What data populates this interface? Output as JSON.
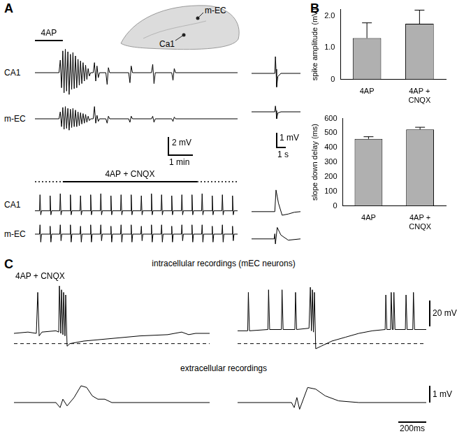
{
  "panel_labels": [
    "A",
    "B",
    "C"
  ],
  "slice_labels": [
    "m-EC",
    "Ca1"
  ],
  "panel_A_scale_bars": [
    {
      "y_label": "2 mV",
      "x_label": "1 min"
    },
    {
      "y_label": "1 mV",
      "x_label": "1 s"
    }
  ],
  "panel_C": {
    "intracellular_title": "intracellular recordings (mEC neurons)",
    "condition": "4AP + CNQX",
    "extracellular_title": "extracellular recordings",
    "scale_bars": {
      "intracellular_y": "20 mV",
      "extracellular_y": "1 mV",
      "x": "200ms"
    }
  },
  "chart_data": [
    {
      "type": "line",
      "title": "CA1",
      "color": "#000000",
      "tick_labels": false,
      "xlim": [
        0,
        8
      ],
      "ylim": [
        -3,
        3
      ],
      "application": {
        "label": "4AP",
        "segments": [
          {
            "x": [
              0,
              1.1
            ],
            "line_style": "solid"
          }
        ]
      },
      "x": [
        0,
        0.95,
        1.0,
        1.05,
        1.1,
        1.15,
        1.2,
        1.25,
        1.3,
        1.35,
        1.4,
        1.45,
        1.5,
        1.55,
        1.6,
        1.65,
        1.7,
        1.75,
        1.8,
        1.85,
        1.9,
        1.95,
        2.0,
        2.05,
        2.1,
        2.15,
        2.2,
        2.3,
        2.35,
        2.4,
        2.45,
        2.5,
        2.55,
        2.8,
        2.85,
        2.9,
        2.95,
        3.7,
        3.75,
        3.8,
        3.85,
        4.6,
        4.65,
        4.7,
        4.75,
        5.4,
        5.45,
        5.5,
        5.55,
        8
      ],
      "values": [
        0,
        0,
        1.5,
        -1.8,
        2.6,
        -2.4,
        2.8,
        -2.2,
        2.5,
        -2.6,
        2.2,
        -2.0,
        2.4,
        -1.9,
        2.0,
        -1.8,
        1.6,
        -1.5,
        1.4,
        -1.3,
        1.2,
        -1.0,
        0.9,
        -0.8,
        0.5,
        -0.4,
        0,
        0,
        1.2,
        -1.0,
        0.8,
        -0.6,
        0,
        0,
        -1.4,
        0.6,
        0,
        0,
        -1.2,
        0.8,
        0,
        0,
        1.0,
        -1.3,
        0,
        0,
        -0.9,
        0.5,
        0,
        0
      ]
    },
    {
      "type": "line",
      "title": "m-EC",
      "color": "#000000",
      "tick_labels": false,
      "xlim": [
        0,
        8
      ],
      "ylim": [
        -2.4,
        2.4
      ],
      "x": [
        0,
        0.95,
        1.0,
        1.05,
        1.1,
        1.15,
        1.2,
        1.25,
        1.3,
        1.35,
        1.4,
        1.45,
        1.5,
        1.55,
        1.6,
        1.65,
        1.7,
        1.75,
        1.8,
        1.85,
        1.9,
        1.95,
        2.0,
        2.05,
        2.1,
        2.15,
        2.2,
        2.3,
        2.35,
        2.4,
        2.45,
        2.5,
        2.55,
        2.8,
        2.85,
        2.9,
        2.95,
        3.7,
        3.75,
        3.8,
        3.85,
        4.6,
        4.65,
        4.7,
        4.75,
        5.4,
        5.45,
        5.5,
        5.55,
        8
      ],
      "values": [
        0,
        0,
        0.8,
        -0.9,
        1.3,
        -1.2,
        1.4,
        -1.1,
        1.2,
        -1.3,
        1.1,
        -1.0,
        1.2,
        -0.9,
        1.0,
        -0.9,
        0.8,
        -0.8,
        0.7,
        -0.6,
        0.6,
        -0.5,
        0.5,
        -0.4,
        0.3,
        -0.2,
        0,
        0,
        1.4,
        -0.5,
        0.4,
        -0.3,
        0,
        0,
        -0.5,
        0.3,
        0,
        0,
        -0.4,
        0.3,
        0,
        0,
        0.3,
        -0.4,
        0,
        0,
        -0.3,
        0.2,
        0,
        0
      ]
    },
    {
      "type": "line",
      "color": "#000000",
      "tick_labels": false,
      "xlim": [
        0,
        4
      ],
      "ylim": [
        -2,
        2
      ],
      "x": [
        0,
        1.9,
        1.95,
        2.0,
        2.05,
        2.15,
        2.4,
        4
      ],
      "values": [
        0,
        0,
        1.6,
        0.4,
        -1.3,
        -0.3,
        0,
        0
      ]
    },
    {
      "type": "line",
      "color": "#000000",
      "tick_labels": false,
      "xlim": [
        0,
        4
      ],
      "ylim": [
        -1.5,
        1.5
      ],
      "x": [
        0,
        1.9,
        1.95,
        2.0,
        2.05,
        2.15,
        2.4,
        4
      ],
      "values": [
        0,
        0,
        0.5,
        0.1,
        -0.6,
        -0.1,
        0,
        0
      ]
    },
    {
      "type": "line",
      "title": "CA1",
      "color": "#000000",
      "tick_labels": false,
      "xlim": [
        0,
        8
      ],
      "ylim": [
        -1,
        2.2
      ],
      "application": {
        "label": "4AP + CNQX",
        "segments": [
          {
            "x": [
              0,
              1.1
            ],
            "line_style": "dotted"
          },
          {
            "x": [
              1.1,
              6.4
            ],
            "line_style": "solid"
          },
          {
            "x": [
              6.4,
              8
            ],
            "line_style": "dotted"
          }
        ]
      },
      "x": [
        0,
        0.18,
        0.2,
        0.23,
        0.26,
        0.58,
        0.6,
        0.63,
        0.66,
        0.98,
        1.0,
        1.03,
        1.06,
        1.38,
        1.4,
        1.43,
        1.46,
        1.78,
        1.8,
        1.83,
        1.86,
        2.18,
        2.2,
        2.23,
        2.26,
        2.58,
        2.6,
        2.63,
        2.66,
        2.98,
        3.0,
        3.03,
        3.06,
        3.38,
        3.4,
        3.43,
        3.46,
        3.78,
        3.8,
        3.83,
        3.86,
        4.18,
        4.2,
        4.23,
        4.26,
        4.58,
        4.6,
        4.63,
        4.66,
        4.98,
        5.0,
        5.03,
        5.06,
        5.38,
        5.4,
        5.43,
        5.46,
        5.78,
        5.8,
        5.83,
        5.86,
        6.18,
        6.2,
        6.23,
        6.26,
        6.58,
        6.6,
        6.63,
        6.66,
        6.98,
        7.0,
        7.03,
        7.06,
        7.38,
        7.4,
        7.43,
        7.46,
        7.78,
        7.8,
        7.83,
        7.86,
        8
      ],
      "values": [
        0,
        0,
        1.6,
        -0.4,
        0,
        0,
        1.5,
        -0.4,
        0,
        0,
        1.7,
        -0.4,
        0,
        0,
        1.6,
        -0.4,
        0,
        0,
        1.5,
        -0.4,
        0,
        0,
        1.6,
        -0.4,
        0,
        0,
        1.7,
        -0.4,
        0,
        0,
        1.5,
        -0.4,
        0,
        0,
        1.6,
        -0.4,
        0,
        0,
        1.6,
        -0.4,
        0,
        0,
        1.5,
        -0.4,
        0,
        0,
        1.7,
        -0.4,
        0,
        0,
        1.6,
        -0.4,
        0,
        0,
        1.5,
        -0.4,
        0,
        0,
        1.6,
        -0.4,
        0,
        0,
        1.6,
        -0.4,
        0,
        0,
        1.7,
        -0.4,
        0,
        0,
        1.5,
        -0.4,
        0,
        0,
        1.6,
        -0.4,
        0,
        0,
        1.5,
        -0.4,
        0,
        0
      ]
    },
    {
      "type": "line",
      "title": "m-EC",
      "color": "#000000",
      "tick_labels": false,
      "xlim": [
        0,
        8
      ],
      "ylim": [
        -1,
        1
      ],
      "x": [
        0,
        0.18,
        0.2,
        0.23,
        0.26,
        0.58,
        0.6,
        0.63,
        0.66,
        0.98,
        1.0,
        1.03,
        1.06,
        1.38,
        1.4,
        1.43,
        1.46,
        1.78,
        1.8,
        1.83,
        1.86,
        2.18,
        2.2,
        2.23,
        2.26,
        2.58,
        2.6,
        2.63,
        2.66,
        2.98,
        3.0,
        3.03,
        3.06,
        3.38,
        3.4,
        3.43,
        3.46,
        3.78,
        3.8,
        3.83,
        3.86,
        4.18,
        4.2,
        4.23,
        4.26,
        4.58,
        4.6,
        4.63,
        4.66,
        4.98,
        5.0,
        5.03,
        5.06,
        5.38,
        5.4,
        5.43,
        5.46,
        5.78,
        5.8,
        5.83,
        5.86,
        6.18,
        6.2,
        6.23,
        6.26,
        6.58,
        6.6,
        6.63,
        6.66,
        6.98,
        7.0,
        7.03,
        7.06,
        7.38,
        7.4,
        7.43,
        7.46,
        7.78,
        7.8,
        7.83,
        7.86,
        8
      ],
      "values": [
        0,
        0,
        0.7,
        -0.6,
        0,
        0,
        0.6,
        -0.6,
        0,
        0,
        0.7,
        -0.5,
        0,
        0,
        0.7,
        -0.6,
        0,
        0,
        0.6,
        -0.6,
        0,
        0,
        0.7,
        -0.6,
        0,
        0,
        0.7,
        -0.5,
        0,
        0,
        0.6,
        -0.6,
        0,
        0,
        0.7,
        -0.6,
        0,
        0,
        0.7,
        -0.6,
        0,
        0,
        0.6,
        -0.5,
        0,
        0,
        0.7,
        -0.6,
        0,
        0,
        0.7,
        -0.6,
        0,
        0,
        0.6,
        -0.6,
        0,
        0,
        0.7,
        -0.5,
        0,
        0,
        0.7,
        -0.6,
        0,
        0,
        0.7,
        -0.6,
        0,
        0,
        0.6,
        -0.6,
        0,
        0,
        0.7,
        -0.6,
        0,
        0,
        0.6,
        -0.5,
        0,
        0
      ]
    },
    {
      "type": "line",
      "color": "#000000",
      "tick_labels": false,
      "xlim": [
        0,
        4
      ],
      "ylim": [
        -1,
        2.2
      ],
      "x": [
        0,
        1.9,
        2.0,
        2.2,
        2.5,
        3.0,
        3.5,
        4
      ],
      "values": [
        0,
        0,
        1.8,
        0.7,
        -0.3,
        -0.2,
        -0.05,
        0
      ]
    },
    {
      "type": "line",
      "color": "#000000",
      "tick_labels": false,
      "xlim": [
        0,
        4
      ],
      "ylim": [
        -1,
        1.2
      ],
      "x": [
        0,
        1.85,
        1.9,
        1.95,
        2.1,
        2.4,
        3.0,
        4
      ],
      "values": [
        0,
        0,
        0.4,
        -0.4,
        0.9,
        0.3,
        -0.1,
        0
      ]
    },
    {
      "type": "bar",
      "y_label": "spike amplitude (mV)",
      "categories": [
        "4AP",
        "4AP + CNQX"
      ],
      "values": [
        1.3,
        1.75
      ],
      "errors": [
        0.48,
        0.43
      ],
      "color": "#b0b0b0",
      "grid": false,
      "ylim": [
        0,
        2.2
      ],
      "yticks": [
        0,
        {
          "value": 1,
          "label": "1.0"
        },
        {
          "value": 2,
          "label": "2.0"
        }
      ]
    },
    {
      "type": "bar",
      "y_label": "slope down delay (ms)",
      "categories": [
        "4AP",
        "4AP + CNQX"
      ],
      "values": [
        460,
        525
      ],
      "errors": [
        15,
        15
      ],
      "color": "#b0b0b0",
      "grid": false,
      "ylim": [
        0,
        600
      ],
      "yticks": [
        0,
        100,
        200,
        300,
        400,
        500,
        600
      ]
    },
    {
      "type": "line",
      "tick_labels": false,
      "xlim": [
        0,
        1400
      ],
      "ylim": [
        -10,
        50
      ],
      "series": [
        {
          "color": "#000000",
          "line_style": "solid",
          "x": [
            0,
            100,
            160,
            170,
            180,
            200,
            300,
            320,
            325,
            335,
            340,
            350,
            355,
            365,
            370,
            380,
            400,
            500,
            700,
            900,
            1100,
            1200,
            1250,
            1300,
            1400
          ],
          "values": [
            8,
            9,
            8,
            40,
            6,
            9,
            10,
            9,
            45,
            8,
            42,
            7,
            40,
            6,
            38,
            -2,
            0,
            2,
            4,
            6,
            7,
            9,
            7,
            8,
            8
          ]
        },
        {
          "color": "#000000",
          "line_style": "dashed",
          "x": [
            0,
            1400
          ],
          "values": [
            0,
            0
          ]
        }
      ]
    },
    {
      "type": "line",
      "tick_labels": false,
      "xlim": [
        0,
        1400
      ],
      "ylim": [
        -10,
        50
      ],
      "series": [
        {
          "color": "#000000",
          "line_style": "solid",
          "x": [
            0,
            75,
            80,
            88,
            225,
            230,
            238,
            325,
            330,
            338,
            425,
            430,
            438,
            530,
            540,
            548,
            555,
            563,
            570,
            580,
            620,
            700,
            800,
            900,
            1000,
            1095,
            1100,
            1108,
            1135,
            1140,
            1148,
            1155,
            1160,
            1168,
            1245,
            1250,
            1258,
            1300,
            1305,
            1313,
            1400
          ],
          "values": [
            10,
            10,
            40,
            10,
            11,
            42,
            11,
            11,
            42,
            11,
            11,
            40,
            11,
            12,
            44,
            10,
            42,
            9,
            40,
            -4,
            -2,
            2,
            5,
            8,
            10,
            11,
            38,
            11,
            11,
            40,
            11,
            11,
            40,
            11,
            11,
            38,
            11,
            11,
            40,
            11,
            11
          ]
        },
        {
          "color": "#000000",
          "line_style": "dashed",
          "x": [
            0,
            1400
          ],
          "values": [
            0,
            0
          ]
        }
      ]
    },
    {
      "type": "line",
      "color": "#000000",
      "tick_labels": false,
      "xlim": [
        0,
        1400
      ],
      "ylim": [
        -1,
        1.5
      ],
      "x": [
        0,
        300,
        330,
        350,
        380,
        430,
        480,
        520,
        560,
        600,
        650,
        700,
        1400
      ],
      "values": [
        0,
        0,
        -0.3,
        0.2,
        -0.2,
        0.3,
        1.0,
        0.9,
        0.4,
        0.2,
        0.2,
        0,
        0
      ]
    },
    {
      "type": "line",
      "color": "#000000",
      "tick_labels": false,
      "xlim": [
        0,
        1400
      ],
      "ylim": [
        -1,
        1.5
      ],
      "x": [
        0,
        400,
        420,
        440,
        460,
        520,
        580,
        650,
        750,
        900,
        1400
      ],
      "values": [
        0,
        0,
        -0.3,
        0.3,
        -0.4,
        0.9,
        0.8,
        0.4,
        0.1,
        0,
        0
      ]
    }
  ]
}
